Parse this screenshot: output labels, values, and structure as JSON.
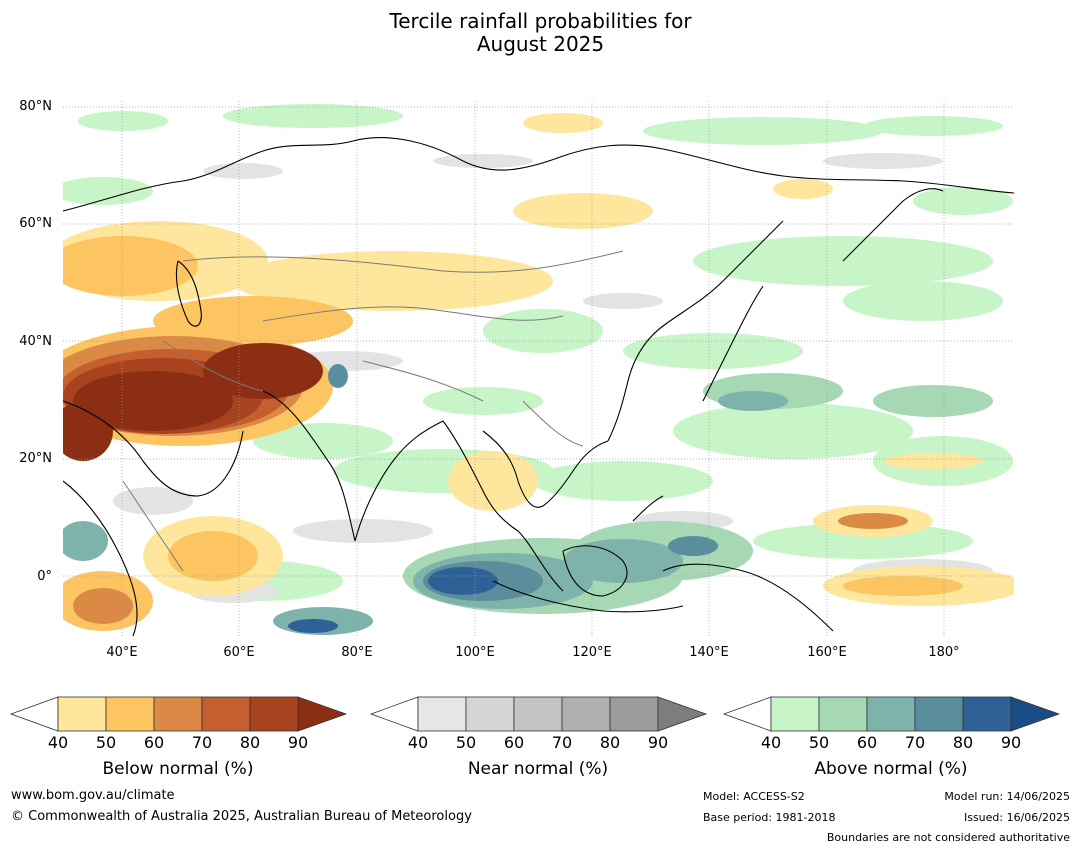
{
  "title": {
    "line1": "Tercile rainfall probabilities for",
    "line2": "August 2025"
  },
  "map": {
    "lat_labels": [
      "80°N",
      "60°N",
      "40°N",
      "20°N",
      "0°"
    ],
    "lon_labels": [
      "40°E",
      "60°E",
      "80°E",
      "100°E",
      "120°E",
      "140°E",
      "160°E",
      "180°"
    ]
  },
  "colorbars": [
    {
      "title": "Below normal (%)",
      "ticks": [
        "40",
        "50",
        "60",
        "70",
        "80",
        "90"
      ],
      "colors": [
        "#ffffff",
        "#fee79c",
        "#fdc561",
        "#db8a45",
        "#c55f30",
        "#a8431f",
        "#8c2e14"
      ]
    },
    {
      "title": "Near normal (%)",
      "ticks": [
        "40",
        "50",
        "60",
        "70",
        "80",
        "90"
      ],
      "colors": [
        "#ffffff",
        "#e6e6e6",
        "#d4d4d4",
        "#c4c4c4",
        "#b0b0b0",
        "#9b9b9b",
        "#7d7d7d"
      ]
    },
    {
      "title": "Above normal (%)",
      "ticks": [
        "40",
        "50",
        "60",
        "70",
        "80",
        "90"
      ],
      "colors": [
        "#ffffff",
        "#c7f5c7",
        "#a6d8b4",
        "#7eb3ab",
        "#5b8e9d",
        "#2e6196",
        "#1a4d85"
      ]
    }
  ],
  "footer": {
    "website": "www.bom.gov.au/climate",
    "copyright": "© Commonwealth of Australia 2025, Australian Bureau of Meteorology",
    "model": "Model: ACCESS-S2",
    "base_period": "Base period: 1981-2018",
    "model_run": "Model run: 14/06/2025",
    "issued": "Issued: 16/06/2025",
    "disclaimer": "Boundaries are not considered authoritative"
  }
}
